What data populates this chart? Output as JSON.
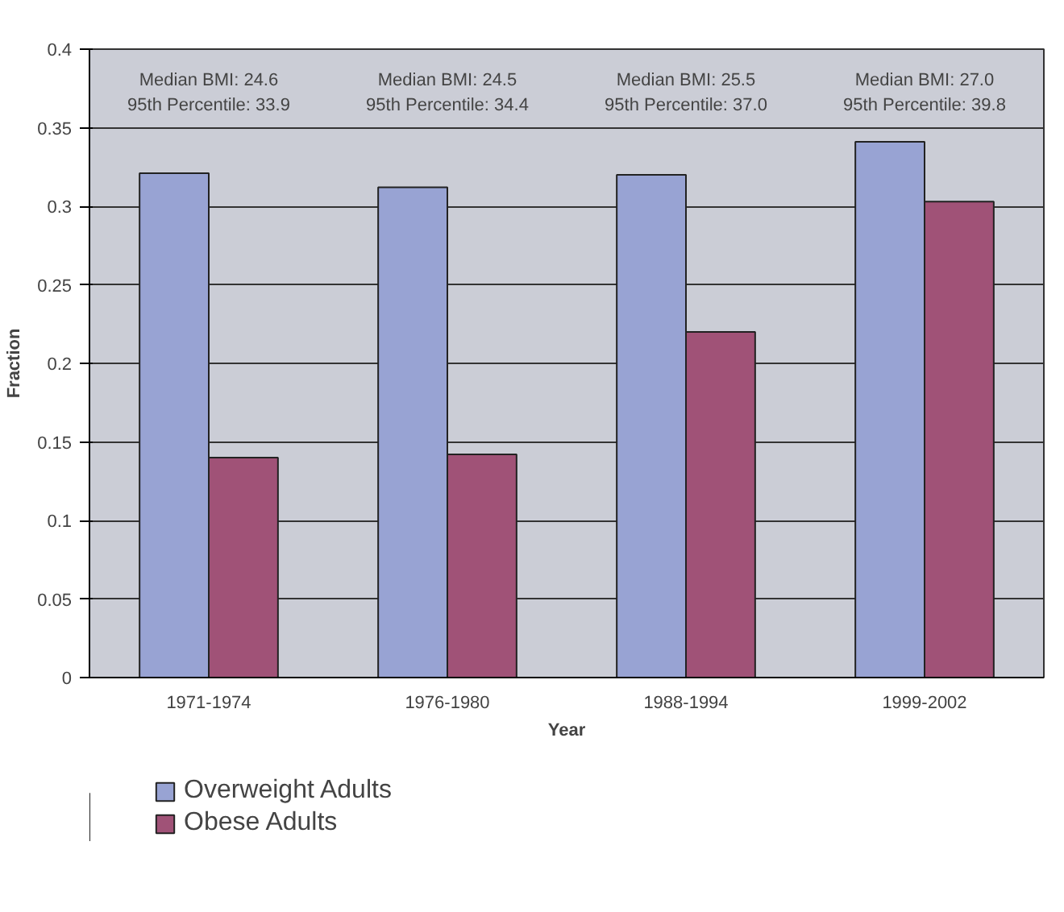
{
  "chart_data": {
    "type": "bar",
    "xlabel": "Year",
    "ylabel": "Fraction",
    "categories": [
      "1971-1974",
      "1976-1980",
      "1988-1994",
      "1999-2002"
    ],
    "series": [
      {
        "name": "Overweight Adults",
        "color": "#98a3d3",
        "values": [
          0.321,
          0.312,
          0.32,
          0.341
        ]
      },
      {
        "name": "Obese Adults",
        "color": "#a05277",
        "values": [
          0.14,
          0.142,
          0.22,
          0.303
        ]
      }
    ],
    "ylim": [
      0,
      0.4
    ],
    "yticks": [
      0,
      0.05,
      0.1,
      0.15,
      0.2,
      0.25,
      0.3,
      0.35,
      0.4
    ],
    "grid": "y",
    "legend": "bottom",
    "annotations": [
      "Median BMI: 24.6\n95th Percentile: 33.9",
      "Median BMI: 24.5\n95th Percentile: 34.4",
      "Median BMI: 25.5\n95th Percentile: 37.0",
      "Median BMI: 27.0\n95th Percentile: 39.8"
    ]
  }
}
